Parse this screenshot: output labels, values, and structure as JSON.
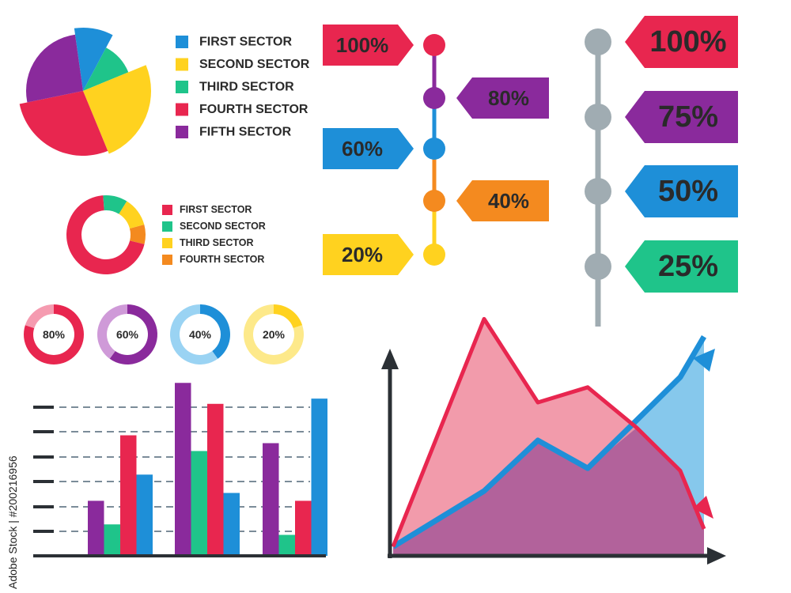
{
  "colors": {
    "blue": "#1e8fd8",
    "yellow": "#ffd21f",
    "green": "#1fc48a",
    "red": "#e8264f",
    "purple": "#8a2a9c",
    "orange": "#f48a1f",
    "grey": "#a0acb2",
    "axis": "#2b3035"
  },
  "side_text": "Adobe Stock | #200216956",
  "chart_data": [
    {
      "type": "pie",
      "legend": [
        "FIRST SECTOR",
        "SECOND SECTOR",
        "THIRD SECTOR",
        "FOURTH SECTOR",
        "FIFTH SECTOR"
      ],
      "slices": [
        {
          "value": 10,
          "color": "blue"
        },
        {
          "value": 11,
          "color": "green"
        },
        {
          "value": 25,
          "color": "yellow"
        },
        {
          "value": 28,
          "color": "red"
        },
        {
          "value": 26,
          "color": "purple"
        }
      ]
    },
    {
      "type": "pie",
      "legend": [
        "FIRST SECTOR",
        "SECOND SECTOR",
        "THIRD SECTOR",
        "FOURTH SECTOR"
      ],
      "slices": [
        {
          "value": 8,
          "color": "orange"
        },
        {
          "value": 70,
          "color": "red"
        },
        {
          "value": 10,
          "color": "green"
        },
        {
          "value": 12,
          "color": "yellow"
        }
      ]
    },
    {
      "type": "timeline",
      "labels": [
        "100%",
        "80%",
        "60%",
        "40%",
        "20%"
      ],
      "colors": [
        "red",
        "purple",
        "blue",
        "orange",
        "yellow"
      ]
    },
    {
      "type": "timeline",
      "labels": [
        "100%",
        "75%",
        "50%",
        "25%"
      ],
      "colors": [
        "red",
        "purple",
        "blue",
        "green"
      ]
    },
    {
      "type": "pie",
      "rings": [
        {
          "label": "80%",
          "value": 80,
          "color": "#e8264f",
          "light": "#f59bb0"
        },
        {
          "label": "60%",
          "value": 60,
          "color": "#8a2a9c",
          "light": "#cf9ad8"
        },
        {
          "label": "40%",
          "value": 40,
          "color": "#1e8fd8",
          "light": "#9ad3f3"
        },
        {
          "label": "20%",
          "value": 20,
          "color": "#ffd21f",
          "light": "#fde98a"
        }
      ]
    },
    {
      "type": "bar",
      "ylim": [
        0,
        7
      ],
      "groups": [
        {
          "bars": [
            {
              "value": 2.1,
              "color": "purple"
            },
            {
              "value": 1.2,
              "color": "green"
            },
            {
              "value": 4.6,
              "color": "red"
            },
            {
              "value": 3.1,
              "color": "blue"
            }
          ]
        },
        {
          "bars": [
            {
              "value": 6.6,
              "color": "purple"
            },
            {
              "value": 4.0,
              "color": "green"
            },
            {
              "value": 5.8,
              "color": "red"
            },
            {
              "value": 2.4,
              "color": "blue"
            }
          ]
        },
        {
          "bars": [
            {
              "value": 4.3,
              "color": "purple"
            },
            {
              "value": 0.8,
              "color": "green"
            },
            {
              "value": 2.1,
              "color": "red"
            },
            {
              "value": 6.0,
              "color": "blue"
            }
          ]
        }
      ]
    },
    {
      "type": "area",
      "x": [
        0,
        1,
        2,
        3,
        4,
        5,
        6
      ],
      "ylim": [
        0,
        10
      ],
      "series": [
        {
          "color": "red",
          "fill": "#f0899c",
          "values": [
            0.3,
            9.3,
            6.0,
            6.6,
            5.0,
            3.3,
            1.0
          ]
        },
        {
          "color": "blue",
          "fill": "#86c8ec",
          "values": [
            0.3,
            2.5,
            4.5,
            3.4,
            5.3,
            7.0,
            8.6
          ]
        }
      ]
    }
  ]
}
